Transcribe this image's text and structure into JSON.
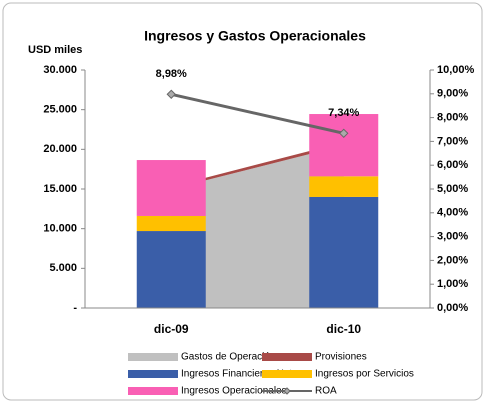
{
  "chart_data": {
    "type": "bar",
    "title": "Ingresos y Gastos  Operacionales",
    "y_label": "USD miles",
    "categories": [
      "dic-09",
      "dic-10"
    ],
    "series": [
      {
        "name": "Gastos de Operación",
        "type": "area",
        "color": "#c0c0c0",
        "values": [
          15000,
          20500
        ]
      },
      {
        "name": "Provisiones",
        "type": "area",
        "color": "#a84a47",
        "values": [
          300,
          400
        ]
      },
      {
        "name": "Ingresos Financieros Netos",
        "type": "bar",
        "color": "#3a5ea8",
        "values": [
          9700,
          14000
        ]
      },
      {
        "name": "Ingresos por Servicios",
        "type": "bar",
        "color": "#ffc000",
        "values": [
          1900,
          2600
        ]
      },
      {
        "name": "Ingresos Operacionales",
        "type": "bar",
        "color": "#f95fb4",
        "values": [
          7050,
          7850
        ]
      },
      {
        "name": "ROA",
        "type": "line",
        "axis": "y2",
        "color": "#666666",
        "values": [
          8.98,
          7.34
        ],
        "value_labels": [
          "8,98%",
          "7,34%"
        ]
      }
    ],
    "ylim": [
      0,
      30000
    ],
    "yticks": [
      {
        "value": 0,
        "label": "-"
      },
      {
        "value": 5000,
        "label": "5.000"
      },
      {
        "value": 10000,
        "label": "10.000"
      },
      {
        "value": 15000,
        "label": "15.000"
      },
      {
        "value": 20000,
        "label": "20.000"
      },
      {
        "value": 25000,
        "label": "25.000"
      },
      {
        "value": 30000,
        "label": "30.000"
      }
    ],
    "y2lim": [
      0,
      10
    ],
    "y2ticks": [
      {
        "value": 0,
        "label": "0,00%"
      },
      {
        "value": 1,
        "label": "1,00%"
      },
      {
        "value": 2,
        "label": "2,00%"
      },
      {
        "value": 3,
        "label": "3,00%"
      },
      {
        "value": 4,
        "label": "4,00%"
      },
      {
        "value": 5,
        "label": "5,00%"
      },
      {
        "value": 6,
        "label": "6,00%"
      },
      {
        "value": 7,
        "label": "7,00%"
      },
      {
        "value": 8,
        "label": "8,00%"
      },
      {
        "value": 9,
        "label": "9,00%"
      },
      {
        "value": 10,
        "label": "10,00%"
      }
    ],
    "legend": "bottom"
  }
}
